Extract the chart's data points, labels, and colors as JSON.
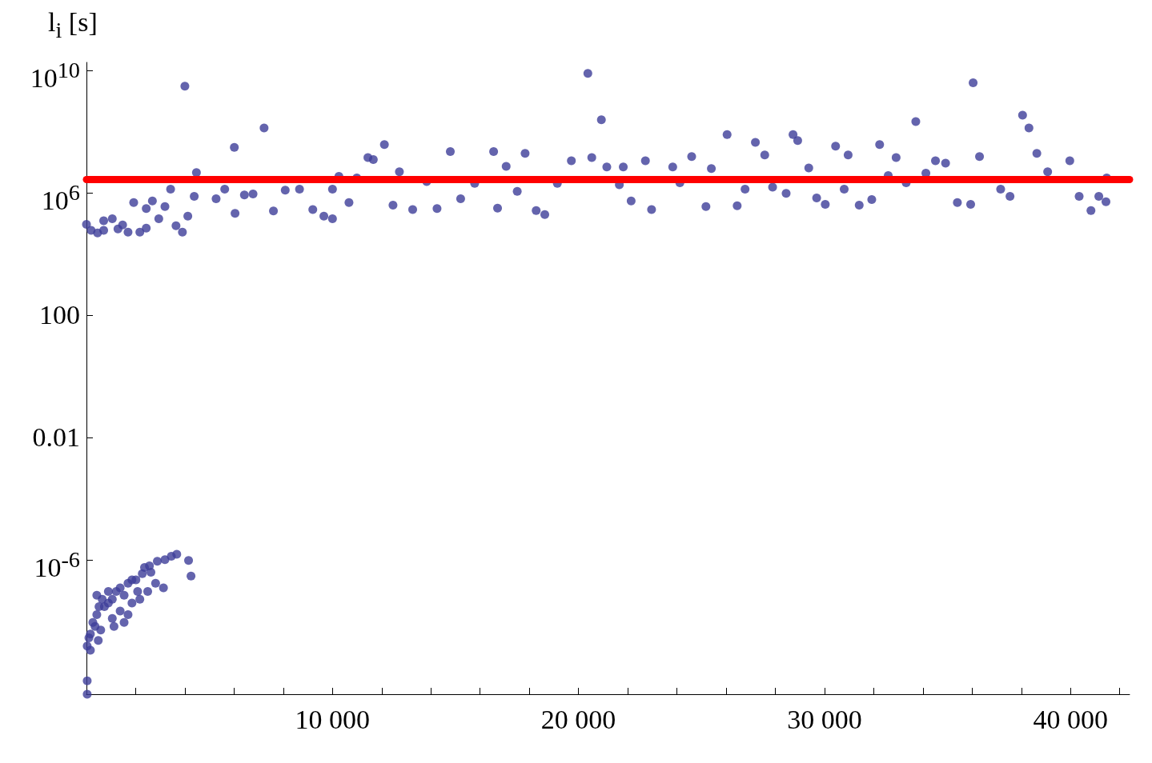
{
  "chart_data": {
    "type": "scatter",
    "ylabel": "l$_{i}$ [s]",
    "log": "y",
    "grid": false,
    "marker": "circle",
    "xlim": [
      0,
      42400
    ],
    "ylim": [
      4e-11,
      18000000000.0
    ],
    "xticks": [
      {
        "value": 2000,
        "label": null
      },
      {
        "value": 4000,
        "label": null
      },
      {
        "value": 6000,
        "label": null
      },
      {
        "value": 8000,
        "label": null
      },
      {
        "value": 10000,
        "label": "10 000"
      },
      {
        "value": 12000,
        "label": null
      },
      {
        "value": 14000,
        "label": null
      },
      {
        "value": 16000,
        "label": null
      },
      {
        "value": 18000,
        "label": null
      },
      {
        "value": 20000,
        "label": "20 000"
      },
      {
        "value": 22000,
        "label": null
      },
      {
        "value": 24000,
        "label": null
      },
      {
        "value": 26000,
        "label": null
      },
      {
        "value": 28000,
        "label": null
      },
      {
        "value": 30000,
        "label": "30 000"
      },
      {
        "value": 32000,
        "label": null
      },
      {
        "value": 34000,
        "label": null
      },
      {
        "value": 36000,
        "label": null
      },
      {
        "value": 38000,
        "label": null
      },
      {
        "value": 40000,
        "label": "40 000"
      },
      {
        "value": 42000,
        "label": null
      }
    ],
    "yticks": [
      {
        "value": 1e-06,
        "label": "10$^{-6}$"
      },
      0.01,
      100,
      {
        "value": 1000000.0,
        "label": "10$^{6}$"
      },
      {
        "value": 10000000000.0,
        "label": "10$^{10}$"
      }
    ],
    "ref_lines": [
      {
        "axis": "y",
        "value": 2700000.0,
        "color": "#ff0000"
      }
    ],
    "series": [
      {
        "color": "#3d3d99",
        "x": [
          0,
          190,
          450,
          700,
          700,
          1050,
          1280,
          1470,
          1690,
          1920,
          2170,
          2430,
          2430,
          2680,
          2940,
          3190,
          3420,
          3640,
          3900,
          4120,
          4380,
          4000,
          4470,
          6010,
          5270,
          5620,
          6040,
          6420,
          6770,
          7220,
          7600,
          8080,
          8660,
          9200,
          9650,
          10000,
          10000,
          10260,
          10670,
          10990,
          11440,
          11660,
          12110,
          12460,
          12720,
          13260,
          13830,
          14250,
          14790,
          15210,
          15780,
          16550,
          16710,
          17060,
          17510,
          17830,
          18280,
          18630,
          19140,
          19710,
          20380,
          20540,
          20930,
          21150,
          21660,
          21820,
          22140,
          22720,
          22970,
          23830,
          24120,
          24600,
          25180,
          25400,
          26040,
          26450,
          26770,
          27190,
          27570,
          27890,
          28440,
          28720,
          28910,
          29360,
          29680,
          30030,
          30450,
          30800,
          30960,
          31410,
          31920,
          32240,
          32590,
          32910,
          33320,
          33710,
          34120,
          34510,
          34920,
          35400,
          35940,
          36040,
          36300,
          36740,
          37160,
          37540,
          38050,
          38310,
          38630,
          39070,
          39550,
          39970,
          40350,
          40830,
          41150,
          41440,
          41470,
          30,
          30,
          30,
          100,
          160,
          260,
          420,
          510,
          640,
          730,
          890,
          1050,
          1210,
          1370,
          1530,
          1690,
          1850,
          2010,
          2270,
          2360,
          2560,
          2620,
          2880,
          3190,
          3450,
          3670,
          4150,
          4250,
          160,
          580,
          1050,
          1370,
          1120,
          1850,
          2170,
          2490,
          2810,
          890,
          420,
          350,
          480,
          1530,
          1690,
          2080,
          3130
        ],
        "values": [
          91000.0,
          58000.0,
          48000.0,
          58000.0,
          120000.0,
          140000.0,
          65000.0,
          87000.0,
          51000.0,
          470000.0,
          51000.0,
          69000.0,
          300000.0,
          530000.0,
          140000.0,
          350000.0,
          1300000.0,
          82000.0,
          51000.0,
          170000.0,
          750000.0,
          3000000000.0,
          4500000.0,
          30000000.0,
          630000.0,
          1300000.0,
          210000.0,
          840000.0,
          900000.0,
          130000000.0,
          250000.0,
          1200000.0,
          1300000.0,
          280000.0,
          170000.0,
          140000.0,
          1300000.0,
          3400000.0,
          470000.0,
          3000000.0,
          14000000.0,
          12000000.0,
          37000000.0,
          390000.0,
          4800000.0,
          280000.0,
          2300000.0,
          300000.0,
          22000000.0,
          630000.0,
          2000000.0,
          22000000.0,
          310000.0,
          7200000.0,
          1100000.0,
          19000000.0,
          260000.0,
          190000.0,
          2000000.0,
          11000000.0,
          7900000000.0,
          14000000.0,
          240000000.0,
          6900000.0,
          1800000.0,
          6900000.0,
          530000.0,
          11000000.0,
          280000.0,
          6900000.0,
          2100000.0,
          15000000.0,
          350000.0,
          6100000.0,
          79000000.0,
          370000.0,
          1300000.0,
          44000000.0,
          17000000.0,
          1500000.0,
          940000.0,
          79000000.0,
          50000000.0,
          6400000.0,
          670000.0,
          410000.0,
          33000000.0,
          1300000.0,
          17000000.0,
          390000.0,
          590000.0,
          37000000.0,
          3600000.0,
          14000000.0,
          2100000.0,
          210000000.0,
          4300000.0,
          11000000.0,
          9200000.0,
          470000.0,
          410000.0,
          3900000000.0,
          15000000.0,
          null,
          1300000.0,
          750000.0,
          340000000.0,
          130000000.0,
          19000000.0,
          4800000.0,
          null,
          11000000.0,
          750000.0,
          260000.0,
          750000.0,
          500000.0,
          3000000.0,
          1.1e-10,
          4e-11,
          1.5e-09,
          2.8e-09,
          3.7e-09,
          8.9e-09,
          1.6e-08,
          2.9e-08,
          5.1e-08,
          2.9e-08,
          3.8e-08,
          5.1e-08,
          9.1e-08,
          1.2e-07,
          6.9e-08,
          1.7e-07,
          2.2e-07,
          2.2e-07,
          3.5e-07,
          5.6e-07,
          6.3e-07,
          3.9e-07,
          8.9e-07,
          1e-06,
          1.3e-06,
          1.5e-06,
          9.4e-07,
          2.9e-07,
          1.1e-09,
          5e-09,
          1.2e-08,
          2.1e-08,
          6.6e-09,
          3.8e-08,
          5.1e-08,
          9.1e-08,
          1.7e-07,
          9.1e-08,
          6.9e-08,
          6.6e-09,
          2.3e-09,
          8.9e-09,
          1.6e-08,
          9.1e-08,
          1.2e-07
        ]
      }
    ]
  }
}
